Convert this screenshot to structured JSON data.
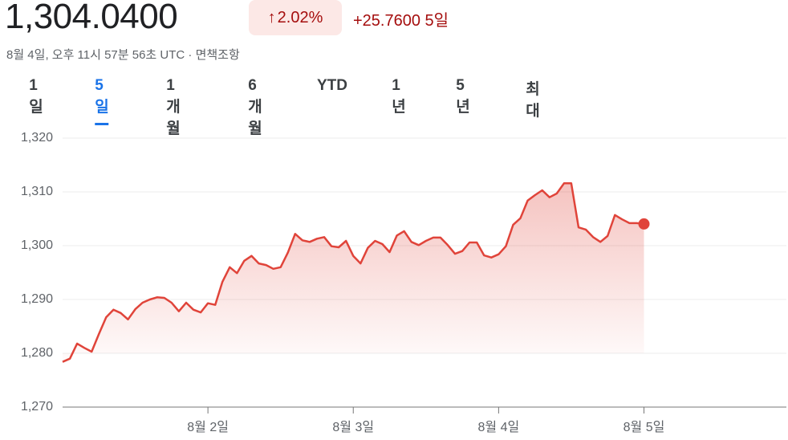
{
  "header": {
    "price": "1,304.0400",
    "change_pct": "2.02%",
    "change_abs": "+25.7600",
    "period": "5일",
    "timestamp": "8월 4일, 오후 11시 57분 56초 UTC",
    "separator": "·",
    "disclaimer": "면책조항"
  },
  "tabs": [
    "1일",
    "5일",
    "1개월",
    "6개월",
    "YTD",
    "1년",
    "5년",
    "최대"
  ],
  "selected_tab": 1,
  "chart_data": {
    "type": "line",
    "color": "#e0443a",
    "x": [
      1,
      1.05,
      1.1,
      1.15,
      1.2,
      1.25,
      1.3,
      1.35,
      1.4,
      1.45,
      1.5,
      1.55,
      1.6,
      1.65,
      1.7,
      1.75,
      1.8,
      1.85,
      1.9,
      1.95,
      2,
      2.05,
      2.1,
      2.15,
      2.2,
      2.25,
      2.3,
      2.35,
      2.4,
      2.45,
      2.5,
      2.55,
      2.6,
      2.65,
      2.7,
      2.75,
      2.8,
      2.85,
      2.9,
      2.95,
      3,
      3.05,
      3.1,
      3.15,
      3.2,
      3.25,
      3.3,
      3.35,
      3.4,
      3.45,
      3.5,
      3.55,
      3.6,
      3.65,
      3.7,
      3.75,
      3.8,
      3.85,
      3.9,
      3.95,
      4,
      4.05,
      4.1,
      4.15,
      4.2,
      4.25,
      4.3,
      4.35,
      4.4,
      4.45,
      4.5,
      4.55,
      4.6,
      4.65,
      4.7,
      4.75,
      4.8,
      4.85,
      4.9,
      4.95,
      5
    ],
    "values": [
      1278.4,
      1279.0,
      1281.8,
      1281.0,
      1280.3,
      1283.6,
      1286.7,
      1288.1,
      1287.5,
      1286.3,
      1288.2,
      1289.4,
      1290.0,
      1290.4,
      1290.3,
      1289.4,
      1287.8,
      1289.4,
      1288.1,
      1287.6,
      1289.3,
      1289.0,
      1293.3,
      1296.0,
      1294.9,
      1297.2,
      1298.1,
      1296.7,
      1296.4,
      1295.7,
      1296.0,
      1298.7,
      1302.2,
      1301.0,
      1300.7,
      1301.3,
      1301.6,
      1299.9,
      1299.7,
      1300.9,
      1298.1,
      1296.7,
      1299.6,
      1300.9,
      1300.3,
      1298.8,
      1301.9,
      1302.7,
      1300.7,
      1300.1,
      1300.9,
      1301.5,
      1301.5,
      1300.1,
      1298.5,
      1299.0,
      1300.6,
      1300.6,
      1298.2,
      1297.8,
      1298.4,
      1299.9,
      1303.9,
      1305.1,
      1308.4,
      1309.4,
      1310.3,
      1309.0,
      1309.7,
      1311.6,
      1311.6,
      1303.4,
      1303.0,
      1301.6,
      1300.7,
      1301.8,
      1305.7,
      1304.9,
      1304.2,
      1304.2,
      1304.04
    ],
    "xlim": [
      1,
      5.98
    ],
    "xticks": [
      {
        "value": 2,
        "label": "8월 2일"
      },
      {
        "value": 3,
        "label": "8월 3일"
      },
      {
        "value": 4,
        "label": "8월 4일"
      },
      {
        "value": 5,
        "label": "8월 5일"
      }
    ],
    "ylim": [
      1270,
      1320
    ],
    "yticks": [
      {
        "value": 1270,
        "label": "1,270"
      },
      {
        "value": 1280,
        "label": "1,280"
      },
      {
        "value": 1290,
        "label": "1,290"
      },
      {
        "value": 1300,
        "label": "1,300"
      },
      {
        "value": 1310,
        "label": "1,310"
      },
      {
        "value": 1320,
        "label": "1,320"
      }
    ],
    "grid": true
  }
}
